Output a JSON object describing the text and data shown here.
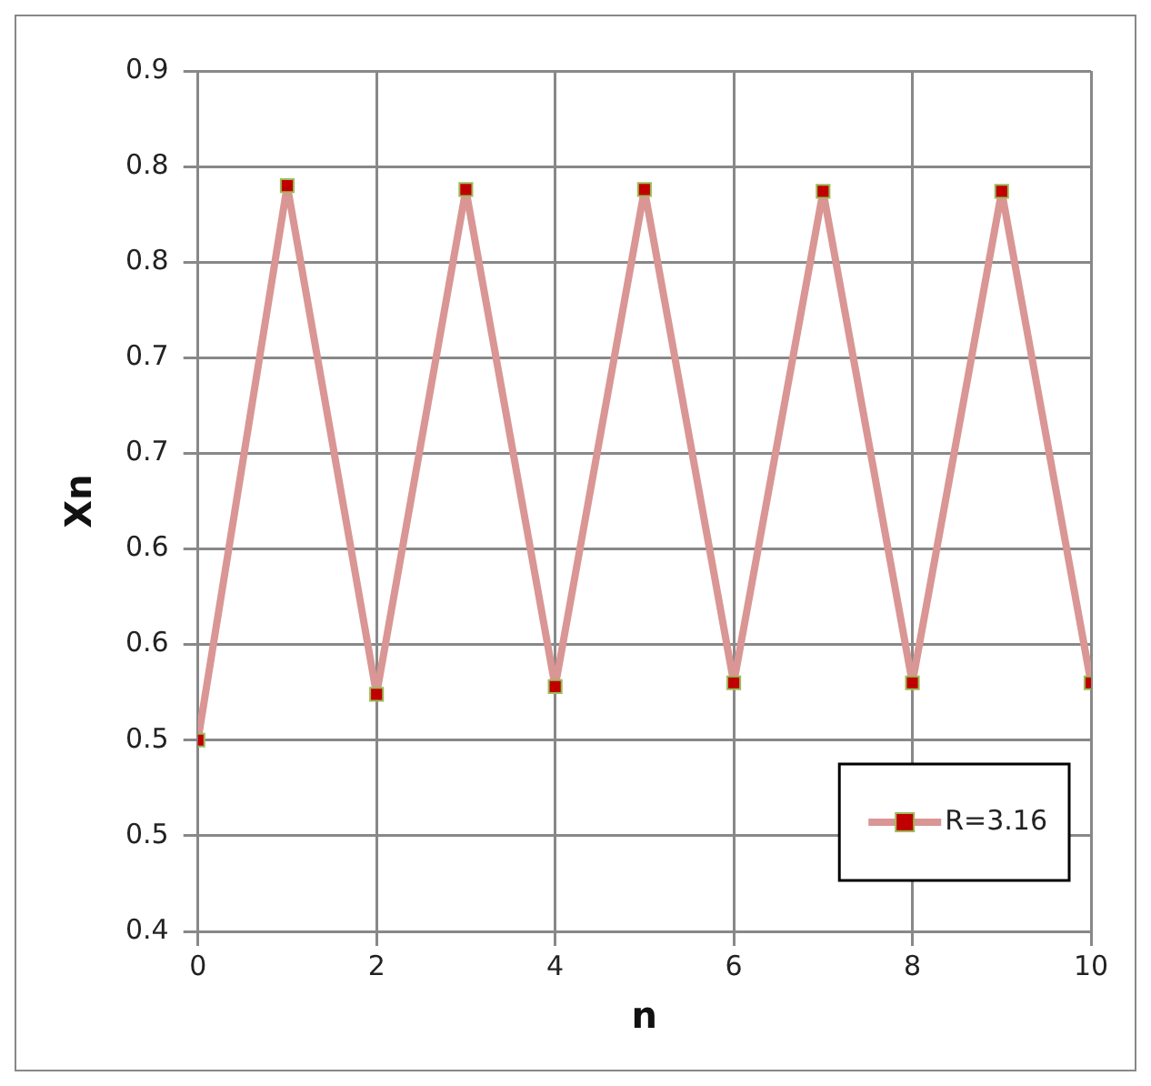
{
  "chart_data": {
    "type": "line",
    "xlabel": "n",
    "ylabel": "Xn",
    "x": [
      0,
      1,
      2,
      3,
      4,
      5,
      6,
      7,
      8,
      9,
      10
    ],
    "series": [
      {
        "name": "R=3.16",
        "color": "#d99694",
        "colors": [
          "#c00000",
          "#c00000",
          "#c00000",
          "#c00000",
          "#c00000",
          "#c00000",
          "#c00000",
          "#c00000",
          "#c00000",
          "#c00000",
          "#c00000"
        ],
        "values": [
          0.5,
          0.79,
          0.524,
          0.788,
          0.528,
          0.788,
          0.53,
          0.787,
          0.53,
          0.787,
          0.53
        ]
      }
    ],
    "xlim": [
      0,
      10
    ],
    "xticks": [
      0,
      2,
      4,
      6,
      8,
      10
    ],
    "ylim": [
      0.4,
      0.85
    ],
    "yticks": [
      {
        "value": 0.4,
        "label": "0.4"
      },
      {
        "value": 0.45,
        "label": "0.5"
      },
      {
        "value": 0.5,
        "label": "0.5"
      },
      {
        "value": 0.55,
        "label": "0.6"
      },
      {
        "value": 0.6,
        "label": "0.6"
      },
      {
        "value": 0.65,
        "label": "0.7"
      },
      {
        "value": 0.7,
        "label": "0.7"
      },
      {
        "value": 0.75,
        "label": "0.8"
      },
      {
        "value": 0.8,
        "label": "0.8"
      },
      {
        "value": 0.85,
        "label": "0.9"
      }
    ],
    "grid": true,
    "legend": "bottom right",
    "marker": "square",
    "line_style": "solid"
  }
}
